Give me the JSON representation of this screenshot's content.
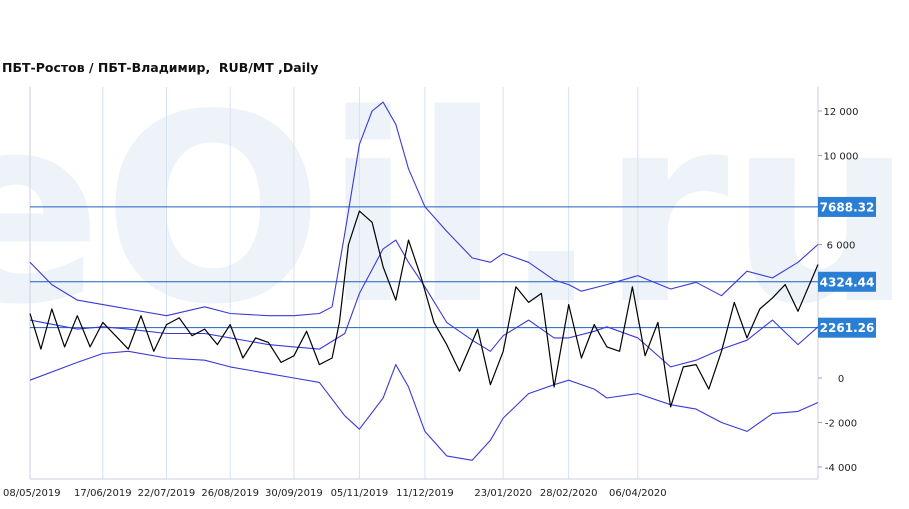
{
  "chart_data": {
    "type": "line",
    "title": "ПБТ-Ростов / ПБТ-Владимир,  RUB/MT ,Daily",
    "watermark": "eOil.ru",
    "colors": {
      "price": "#000000",
      "bands": "#3a3ad8",
      "levels": "#1f5fbf",
      "badge": "#2a7fd4",
      "grid": "#d6e2ee",
      "watermark": "#eef3fa"
    },
    "ylim": [
      -4500,
      13000
    ],
    "y_ticks": [
      12000,
      10000,
      6000,
      0,
      -2000,
      -4000
    ],
    "y_tick_labels": [
      "12 000",
      "10 000",
      "6 000",
      "0",
      "-2 000",
      "-4 000"
    ],
    "x_range": [
      "2019-05-08",
      "2020-07-14"
    ],
    "x_ticks": [
      "2019-05-08",
      "2019-06-17",
      "2019-07-22",
      "2019-08-26",
      "2019-09-30",
      "2019-11-05",
      "2019-12-11",
      "2020-01-23",
      "2020-02-28",
      "2020-04-06"
    ],
    "x_tick_labels": [
      "08/05/2019",
      "17/06/2019",
      "22/07/2019",
      "26/08/2019",
      "30/09/2019",
      "05/11/2019",
      "11/12/2019",
      "23/01/2020",
      "28/02/2020",
      "06/04/2020"
    ],
    "levels": [
      {
        "value": 7688.32,
        "label": "7688.32"
      },
      {
        "value": 4324.44,
        "label": "4324.44"
      },
      {
        "value": 2261.26,
        "label": "2261.26"
      }
    ],
    "series": [
      {
        "role": "price",
        "x": [
          "2019-05-08",
          "2019-05-14",
          "2019-05-20",
          "2019-05-27",
          "2019-06-03",
          "2019-06-10",
          "2019-06-17",
          "2019-06-24",
          "2019-07-01",
          "2019-07-08",
          "2019-07-15",
          "2019-07-22",
          "2019-07-29",
          "2019-08-05",
          "2019-08-12",
          "2019-08-19",
          "2019-08-26",
          "2019-09-02",
          "2019-09-09",
          "2019-09-16",
          "2019-09-23",
          "2019-09-30",
          "2019-10-07",
          "2019-10-14",
          "2019-10-21",
          "2019-10-25",
          "2019-10-30",
          "2019-11-05",
          "2019-11-12",
          "2019-11-18",
          "2019-11-25",
          "2019-12-02",
          "2019-12-09",
          "2019-12-16",
          "2019-12-23",
          "2019-12-30",
          "2020-01-09",
          "2020-01-16",
          "2020-01-23",
          "2020-01-30",
          "2020-02-06",
          "2020-02-13",
          "2020-02-20",
          "2020-02-28",
          "2020-03-06",
          "2020-03-13",
          "2020-03-20",
          "2020-03-27",
          "2020-04-03",
          "2020-04-10",
          "2020-04-17",
          "2020-04-24",
          "2020-05-01",
          "2020-05-08",
          "2020-05-15",
          "2020-05-22",
          "2020-05-29",
          "2020-06-05",
          "2020-06-12",
          "2020-06-19",
          "2020-06-26",
          "2020-07-03",
          "2020-07-14"
        ],
        "values": [
          2900,
          1300,
          3100,
          1400,
          2800,
          1400,
          2500,
          1900,
          1300,
          2800,
          1200,
          2400,
          2700,
          1900,
          2200,
          1500,
          2400,
          900,
          1800,
          1600,
          700,
          1000,
          2100,
          600,
          900,
          2500,
          6000,
          7500,
          7000,
          5000,
          3500,
          6200,
          4500,
          2500,
          1500,
          300,
          2200,
          -300,
          1200,
          4100,
          3400,
          3800,
          -400,
          3300,
          900,
          2400,
          1400,
          1200,
          4100,
          1000,
          2500,
          -1300,
          500,
          600,
          -500,
          1200,
          3400,
          1800,
          3100,
          3600,
          4200,
          3000,
          5100
        ]
      },
      {
        "role": "upper-band",
        "x": [
          "2019-05-08",
          "2019-05-20",
          "2019-06-03",
          "2019-06-17",
          "2019-07-01",
          "2019-07-22",
          "2019-08-12",
          "2019-08-26",
          "2019-09-16",
          "2019-09-30",
          "2019-10-14",
          "2019-10-21",
          "2019-10-28",
          "2019-11-05",
          "2019-11-12",
          "2019-11-18",
          "2019-11-25",
          "2019-12-02",
          "2019-12-11",
          "2019-12-23",
          "2020-01-06",
          "2020-01-16",
          "2020-01-23",
          "2020-02-06",
          "2020-02-20",
          "2020-02-28",
          "2020-03-06",
          "2020-03-20",
          "2020-04-06",
          "2020-04-24",
          "2020-05-08",
          "2020-05-22",
          "2020-06-05",
          "2020-06-19",
          "2020-07-03",
          "2020-07-14"
        ],
        "values": [
          5200,
          4200,
          3500,
          3300,
          3100,
          2800,
          3200,
          2900,
          2800,
          2800,
          2900,
          3200,
          6500,
          10500,
          12000,
          12400,
          11400,
          9400,
          7700,
          6600,
          5400,
          5200,
          5600,
          5200,
          4400,
          4200,
          3900,
          4200,
          4600,
          4000,
          4300,
          3700,
          4800,
          4500,
          5200,
          6000
        ]
      },
      {
        "role": "middle",
        "x": [
          "2019-05-08",
          "2019-06-03",
          "2019-06-17",
          "2019-07-01",
          "2019-07-22",
          "2019-08-12",
          "2019-08-26",
          "2019-09-16",
          "2019-09-30",
          "2019-10-14",
          "2019-10-28",
          "2019-11-05",
          "2019-11-18",
          "2019-11-25",
          "2019-12-02",
          "2019-12-11",
          "2019-12-23",
          "2020-01-06",
          "2020-01-16",
          "2020-01-23",
          "2020-02-06",
          "2020-02-20",
          "2020-02-28",
          "2020-03-13",
          "2020-03-20",
          "2020-04-06",
          "2020-04-24",
          "2020-05-08",
          "2020-05-22",
          "2020-06-05",
          "2020-06-19",
          "2020-07-03",
          "2020-07-14"
        ],
        "values": [
          2600,
          2200,
          2300,
          2200,
          2000,
          2000,
          1800,
          1500,
          1400,
          1300,
          2000,
          3800,
          5800,
          6200,
          5200,
          4100,
          2500,
          1700,
          1200,
          1900,
          2600,
          1800,
          1800,
          2100,
          2300,
          1800,
          500,
          800,
          1300,
          1700,
          2600,
          1500,
          2300
        ]
      },
      {
        "role": "lower-band",
        "x": [
          "2019-05-08",
          "2019-06-03",
          "2019-06-17",
          "2019-07-01",
          "2019-07-22",
          "2019-08-12",
          "2019-08-26",
          "2019-09-16",
          "2019-09-30",
          "2019-10-14",
          "2019-10-28",
          "2019-11-05",
          "2019-11-18",
          "2019-11-25",
          "2019-12-02",
          "2019-12-11",
          "2019-12-23",
          "2020-01-06",
          "2020-01-16",
          "2020-01-23",
          "2020-02-06",
          "2020-02-20",
          "2020-02-28",
          "2020-03-13",
          "2020-03-20",
          "2020-04-06",
          "2020-04-24",
          "2020-05-08",
          "2020-05-22",
          "2020-06-05",
          "2020-06-19",
          "2020-07-03",
          "2020-07-14"
        ],
        "values": [
          -100,
          700,
          1100,
          1200,
          900,
          800,
          500,
          200,
          0,
          -200,
          -1700,
          -2300,
          -900,
          600,
          -400,
          -2400,
          -3500,
          -3700,
          -2800,
          -1800,
          -700,
          -300,
          -100,
          -500,
          -900,
          -700,
          -1200,
          -1400,
          -2000,
          -2400,
          -1600,
          -1500,
          -1100
        ]
      }
    ]
  }
}
